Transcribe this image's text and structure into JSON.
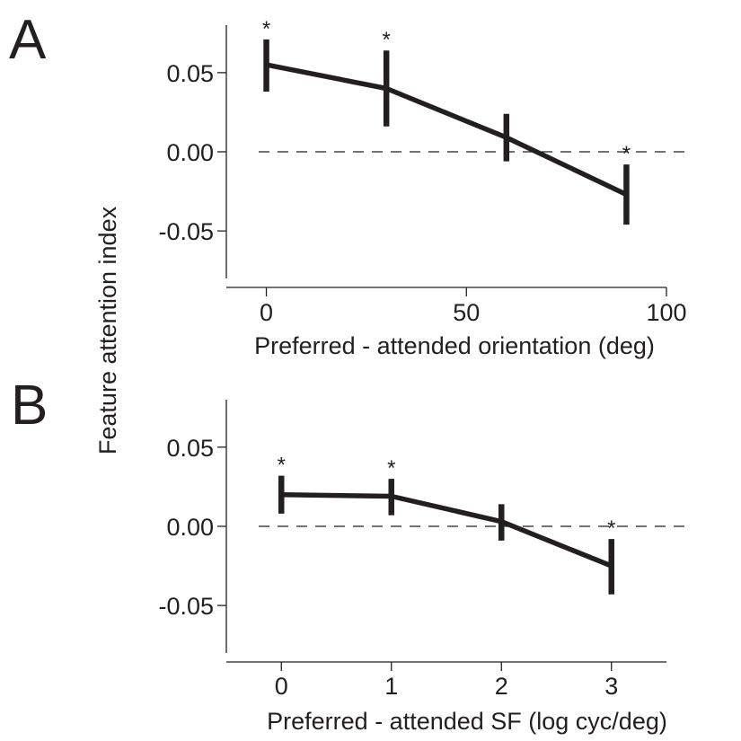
{
  "chart_data": [
    {
      "type": "line",
      "panel": "A",
      "xlabel": "Preferred - attended orientation (deg)",
      "ylabel": "Feature attention index",
      "xlim": [
        -10,
        100
      ],
      "ylim": [
        -0.08,
        0.08
      ],
      "xticks": [
        0,
        50,
        100
      ],
      "xtick_labels": [
        "0",
        "50",
        "100"
      ],
      "yticks": [
        0.05,
        0.0,
        -0.05
      ],
      "ytick_labels": [
        "0.05",
        "0.00",
        "-0.05"
      ],
      "reference_line": {
        "y": 0.0,
        "style": "dashed"
      },
      "grid": false,
      "legend": "none",
      "series": [
        {
          "x": [
            0,
            30,
            60,
            90
          ],
          "y": [
            0.055,
            0.04,
            0.009,
            -0.027
          ],
          "err_low": [
            0.038,
            0.016,
            -0.006,
            -0.046
          ],
          "err_high": [
            0.071,
            0.064,
            0.024,
            -0.008
          ],
          "significant": [
            true,
            true,
            false,
            true
          ],
          "marker_text": "*"
        }
      ]
    },
    {
      "type": "line",
      "panel": "B",
      "xlabel": "Preferred - attended SF (log cyc/deg)",
      "ylabel": "Feature attention index",
      "xlim": [
        -0.5,
        3.5
      ],
      "ylim": [
        -0.08,
        0.08
      ],
      "xticks": [
        0,
        1,
        2,
        3
      ],
      "xtick_labels": [
        "0",
        "1",
        "2",
        "3"
      ],
      "yticks": [
        0.05,
        0.0,
        -0.05
      ],
      "ytick_labels": [
        "0.05",
        "0.00",
        "-0.05"
      ],
      "reference_line": {
        "y": 0.0,
        "style": "dashed"
      },
      "grid": false,
      "legend": "none",
      "series": [
        {
          "x": [
            0,
            1,
            2,
            3
          ],
          "y": [
            0.02,
            0.019,
            0.003,
            -0.025
          ],
          "err_low": [
            0.008,
            0.007,
            -0.009,
            -0.043
          ],
          "err_high": [
            0.032,
            0.03,
            0.014,
            -0.008
          ],
          "significant": [
            true,
            true,
            false,
            true
          ],
          "marker_text": "*"
        }
      ]
    }
  ],
  "shared_ylabel": "Feature attention index"
}
